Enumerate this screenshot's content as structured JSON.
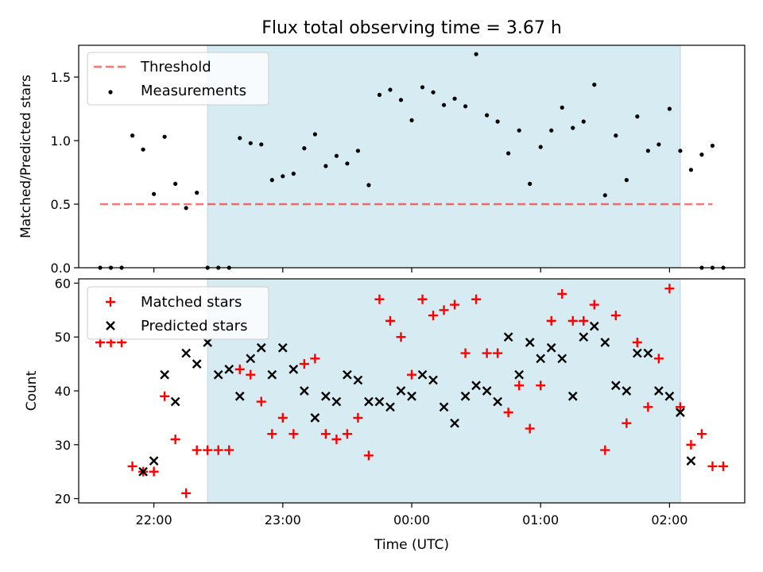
{
  "title": "Flux total observing time = 3.67 h",
  "colors": {
    "window": "#add8e6",
    "threshold": "#ff0000",
    "measurements": "#000000",
    "matched": "#ff0000",
    "predicted": "#000000"
  },
  "chart_data": [
    {
      "type": "scatter",
      "panel": "top",
      "ylabel": "Matched/Predicted stars",
      "ylim": [
        0,
        1.75
      ],
      "yticks": [
        "0.0",
        "0.5",
        "1.0",
        "1.5"
      ],
      "ytick_values": [
        0,
        0.5,
        1.0,
        1.5
      ],
      "xlim": [
        "21:25",
        "02:35"
      ],
      "shaded_window": [
        "22:25",
        "02:05"
      ],
      "grid": false,
      "legend_position": "top-left",
      "threshold": {
        "name": "Threshold",
        "value": 0.5,
        "x_range": [
          "21:35",
          "02:20"
        ]
      },
      "series": [
        {
          "name": "Measurements",
          "marker": "dot",
          "x": [
            "21:35",
            "21:40",
            "21:45",
            "21:50",
            "21:55",
            "22:00",
            "22:05",
            "22:10",
            "22:15",
            "22:20",
            "22:25",
            "22:30",
            "22:35",
            "22:40",
            "22:45",
            "22:50",
            "22:55",
            "23:00",
            "23:05",
            "23:10",
            "23:15",
            "23:20",
            "23:25",
            "23:30",
            "23:35",
            "23:40",
            "23:45",
            "23:50",
            "23:55",
            "00:00",
            "00:05",
            "00:10",
            "00:15",
            "00:20",
            "00:25",
            "00:30",
            "00:35",
            "00:40",
            "00:45",
            "00:50",
            "00:55",
            "01:00",
            "01:05",
            "01:10",
            "01:15",
            "01:20",
            "01:25",
            "01:30",
            "01:35",
            "01:40",
            "01:45",
            "01:50",
            "01:55",
            "02:00",
            "02:05",
            "02:10",
            "02:15",
            "02:20"
          ],
          "y": [
            0,
            0,
            0,
            1.04,
            0.93,
            0.58,
            1.03,
            0.66,
            0.47,
            0.59,
            0,
            0,
            0,
            1.02,
            0.98,
            0.97,
            0.69,
            0.72,
            0.74,
            0.94,
            1.05,
            0.8,
            0.88,
            0.82,
            0.92,
            0.65,
            1.36,
            1.4,
            1.32,
            1.16,
            1.42,
            1.38,
            1.28,
            1.33,
            1.27,
            1.68,
            1.2,
            1.15,
            0.9,
            1.08,
            0.66,
            0.95,
            1.08,
            1.26,
            1.1,
            1.15,
            1.44,
            0.57,
            1.04,
            0.69,
            1.19,
            0.92,
            0.97,
            1.25,
            0.92,
            0.77,
            0.89,
            0.96
          ]
        }
      ],
      "extra_points": [
        {
          "x": "02:15",
          "y": 0
        },
        {
          "x": "02:20",
          "y": 0
        },
        {
          "x": "02:25",
          "y": 0
        }
      ]
    },
    {
      "type": "scatter",
      "panel": "bottom",
      "xlabel": "Time (UTC)",
      "ylabel": "Count",
      "ylim": [
        19.2,
        60.8
      ],
      "yticks": [
        "20",
        "30",
        "40",
        "50",
        "60"
      ],
      "ytick_values": [
        20,
        30,
        40,
        50,
        60
      ],
      "xticks": [
        "22:00",
        "23:00",
        "00:00",
        "01:00",
        "02:00"
      ],
      "xlim": [
        "21:25",
        "02:35"
      ],
      "shaded_window": [
        "22:25",
        "02:05"
      ],
      "grid": false,
      "legend_position": "top-left",
      "series": [
        {
          "name": "Matched stars",
          "marker": "plus",
          "x": [
            "21:35",
            "21:40",
            "21:45",
            "21:50",
            "21:55",
            "22:00",
            "22:05",
            "22:10",
            "22:15",
            "22:20",
            "22:25",
            "22:30",
            "22:35",
            "22:40",
            "22:45",
            "22:50",
            "22:55",
            "23:00",
            "23:05",
            "23:10",
            "23:15",
            "23:20",
            "23:25",
            "23:30",
            "23:35",
            "23:40",
            "23:45",
            "23:50",
            "23:55",
            "00:00",
            "00:05",
            "00:10",
            "00:15",
            "00:20",
            "00:25",
            "00:30",
            "00:35",
            "00:40",
            "00:45",
            "00:50",
            "00:55",
            "01:00",
            "01:05",
            "01:10",
            "01:15",
            "01:20",
            "01:25",
            "01:30",
            "01:35",
            "01:40",
            "01:45",
            "01:50",
            "01:55",
            "02:00",
            "02:05",
            "02:10",
            "02:15",
            "02:20",
            "02:25"
          ],
          "y": [
            49,
            49,
            49,
            26,
            25,
            25,
            39,
            31,
            21,
            29,
            29,
            29,
            29,
            44,
            43,
            38,
            32,
            35,
            32,
            45,
            46,
            32,
            31,
            32,
            35,
            28,
            57,
            53,
            50,
            43,
            57,
            54,
            55,
            56,
            47,
            57,
            47,
            47,
            36,
            41,
            33,
            41,
            53,
            58,
            53,
            53,
            56,
            29,
            54,
            34,
            49,
            37,
            46,
            59,
            37,
            30,
            32,
            26,
            26
          ],
          "x_start_offset": 0,
          "note": ""
        },
        {
          "name": "Predicted stars",
          "marker": "x",
          "x": [
            "21:55",
            "22:00",
            "22:05",
            "22:10",
            "22:15",
            "22:20",
            "22:25",
            "22:30",
            "22:35",
            "22:40",
            "22:45",
            "22:50",
            "22:55",
            "23:00",
            "23:05",
            "23:10",
            "23:15",
            "23:20",
            "23:25",
            "23:30",
            "23:35",
            "23:40",
            "23:45",
            "23:50",
            "23:55",
            "00:00",
            "00:05",
            "00:10",
            "00:15",
            "00:20",
            "00:25",
            "00:30",
            "00:35",
            "00:40",
            "00:45",
            "00:50",
            "00:55",
            "01:00",
            "01:05",
            "01:10",
            "01:15",
            "01:20",
            "01:25",
            "01:30",
            "01:35",
            "01:40",
            "01:45",
            "01:50",
            "01:55",
            "02:00",
            "02:05",
            "02:10"
          ],
          "y": [
            25,
            27,
            43,
            38,
            47,
            45,
            49,
            43,
            44,
            39,
            46,
            48,
            43,
            48,
            44,
            40,
            35,
            39,
            38,
            43,
            42,
            38,
            38,
            37,
            40,
            39,
            43,
            42,
            37,
            34,
            39,
            41,
            40,
            38,
            50,
            43,
            49,
            46,
            48,
            46,
            39,
            50,
            52,
            49,
            41,
            40,
            47,
            47,
            40,
            39,
            36,
            27
          ]
        }
      ]
    }
  ]
}
